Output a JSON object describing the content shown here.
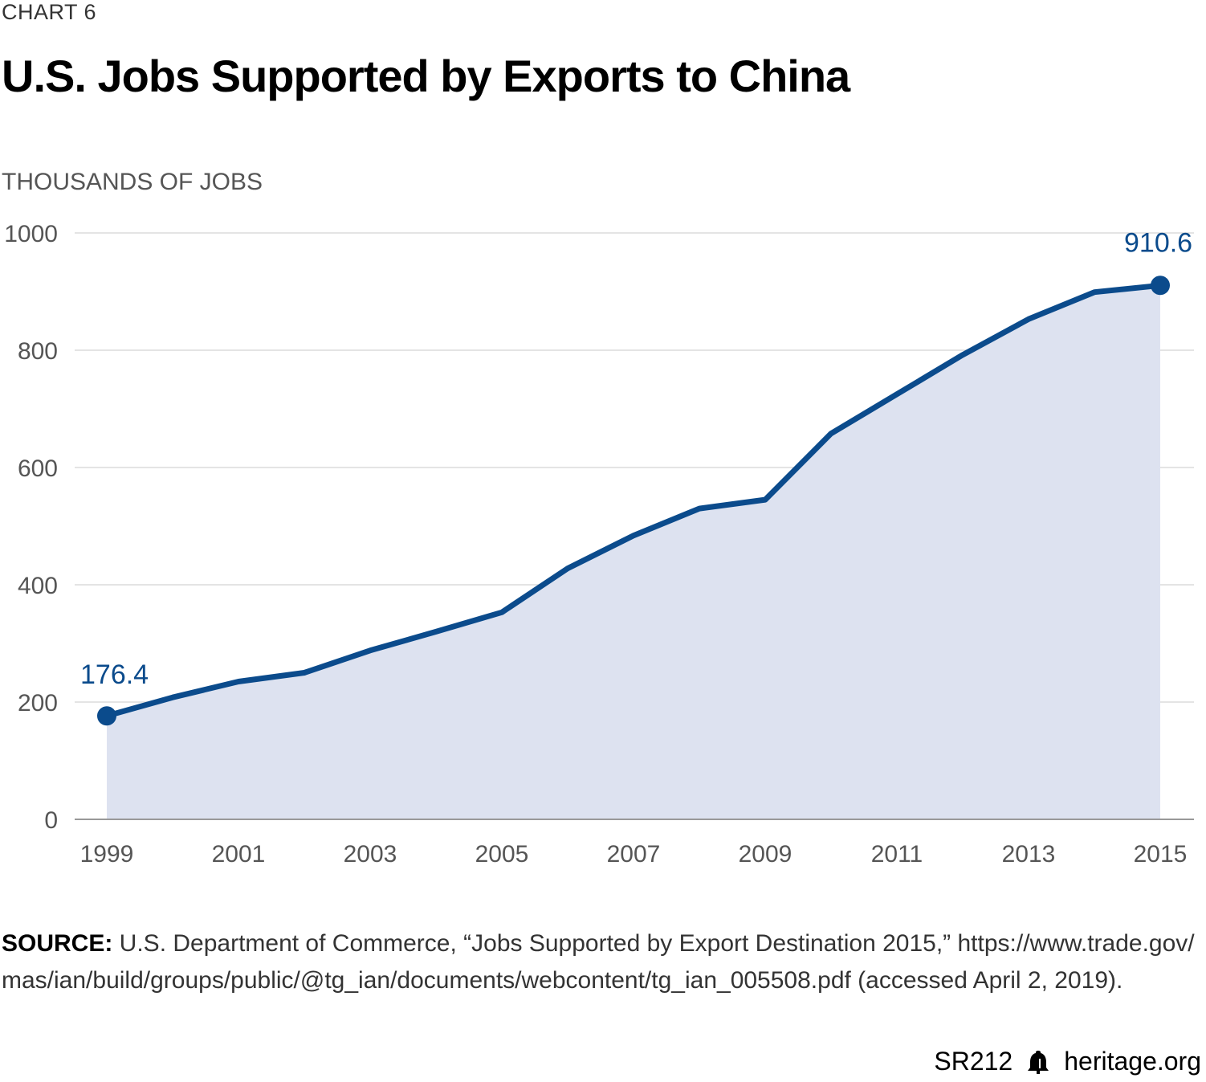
{
  "header": {
    "chart_number": "CHART 6",
    "title": "U.S. Jobs Supported by Exports to China"
  },
  "colors": {
    "line": "#0b4b8c",
    "area": "#dde2f0",
    "grid": "#dcdcdc",
    "axis_text": "#555555",
    "label_text": "#0b4b8c"
  },
  "chart_data": {
    "type": "area",
    "title": "U.S. Jobs Supported by Exports to China",
    "ylabel": "THOUSANDS OF JOBS",
    "x": [
      1999,
      2000,
      2001,
      2002,
      2003,
      2004,
      2005,
      2006,
      2007,
      2008,
      2009,
      2010,
      2011,
      2012,
      2013,
      2014,
      2015
    ],
    "values": [
      176.4,
      208,
      235,
      250,
      288,
      320,
      353,
      428,
      484,
      530,
      545,
      658,
      725,
      792,
      853,
      899,
      910.6
    ],
    "xticks": [
      "1999",
      "2001",
      "2003",
      "2005",
      "2007",
      "2009",
      "2011",
      "2013",
      "2015"
    ],
    "yticks": [
      "0",
      "200",
      "400",
      "600",
      "800",
      "1000"
    ],
    "ylim": [
      0,
      1000
    ],
    "grid": true,
    "annotations": [
      {
        "text": "176.4",
        "x": 1999,
        "y": 176.4
      },
      {
        "text": "910.6",
        "x": 2015,
        "y": 910.6
      }
    ]
  },
  "source": {
    "label": "SOURCE:",
    "text": " U.S. Department of Commerce, “Jobs Supported by Export Destination 2015,” https://www.trade.gov/ mas/ian/build/groups/public/@tg_ian/documents/webcontent/tg_ian_005508.pdf (accessed April 2, 2019)."
  },
  "footer": {
    "code": "SR212",
    "site": "heritage.org",
    "logo_icon": "liberty-bell-icon"
  }
}
